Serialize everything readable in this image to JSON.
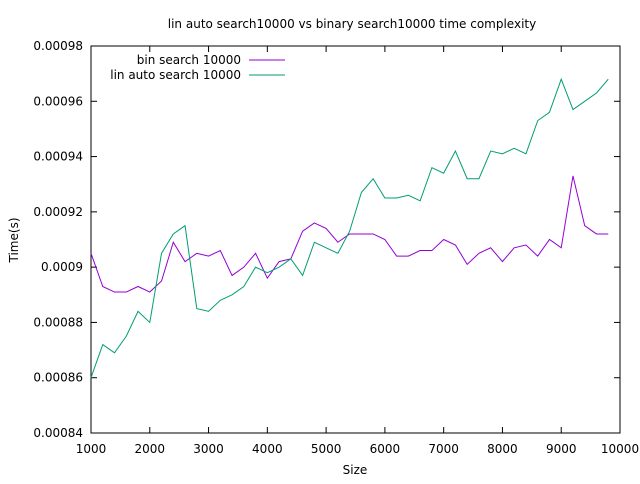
{
  "chart_data": {
    "type": "line",
    "title": "lin auto search10000 vs binary search10000 time complexity",
    "xlabel": "Size",
    "ylabel": "Time(s)",
    "xlim": [
      1000,
      10000
    ],
    "ylim": [
      0.00084,
      0.00098
    ],
    "x_ticks": [
      1000,
      2000,
      3000,
      4000,
      5000,
      6000,
      7000,
      8000,
      9000,
      10000
    ],
    "y_ticks": [
      0.00084,
      0.00086,
      0.00088,
      0.0009,
      0.00092,
      0.00094,
      0.00096,
      0.00098
    ],
    "y_tick_labels": [
      "0.00084",
      "0.00086",
      "0.00088",
      "0.0009",
      "0.00092",
      "0.00094",
      "0.00096",
      "0.00098"
    ],
    "grid": false,
    "legend_position": "top-left",
    "x": [
      1000,
      1200,
      1400,
      1600,
      1800,
      2000,
      2200,
      2400,
      2600,
      2800,
      3000,
      3200,
      3400,
      3600,
      3800,
      4000,
      4200,
      4400,
      4600,
      4800,
      5000,
      5200,
      5400,
      5600,
      5800,
      6000,
      6200,
      6400,
      6600,
      6800,
      7000,
      7200,
      7400,
      7600,
      7800,
      8000,
      8200,
      8400,
      8600,
      8800,
      9000,
      9200,
      9400,
      9600,
      9800
    ],
    "series": [
      {
        "name": "bin search 10000",
        "color": "#9400d3",
        "values": [
          0.000905,
          0.000893,
          0.000891,
          0.000891,
          0.000893,
          0.000891,
          0.000895,
          0.000909,
          0.000902,
          0.000905,
          0.000904,
          0.000906,
          0.000897,
          0.0009,
          0.000905,
          0.000896,
          0.000902,
          0.000903,
          0.000913,
          0.000916,
          0.000914,
          0.000909,
          0.000912,
          0.000912,
          0.000912,
          0.00091,
          0.000904,
          0.000904,
          0.000906,
          0.000906,
          0.00091,
          0.000908,
          0.000901,
          0.000905,
          0.000907,
          0.000902,
          0.000907,
          0.000908,
          0.000904,
          0.00091,
          0.000907,
          0.000933,
          0.000915,
          0.000912,
          0.000912
        ]
      },
      {
        "name": "lin auto search 10000",
        "color": "#009e73",
        "values": [
          0.00086,
          0.000872,
          0.000869,
          0.000875,
          0.000884,
          0.00088,
          0.000905,
          0.000912,
          0.000915,
          0.000885,
          0.000884,
          0.000888,
          0.00089,
          0.000893,
          0.0009,
          0.000898,
          0.0009,
          0.000903,
          0.000897,
          0.000909,
          0.000907,
          0.000905,
          0.000913,
          0.000927,
          0.000932,
          0.000925,
          0.000925,
          0.000926,
          0.000924,
          0.000936,
          0.000934,
          0.000942,
          0.000932,
          0.000932,
          0.000942,
          0.000941,
          0.000943,
          0.000941,
          0.000953,
          0.000956,
          0.000968,
          0.000957,
          0.00096,
          0.000963,
          0.000968
        ]
      }
    ]
  }
}
